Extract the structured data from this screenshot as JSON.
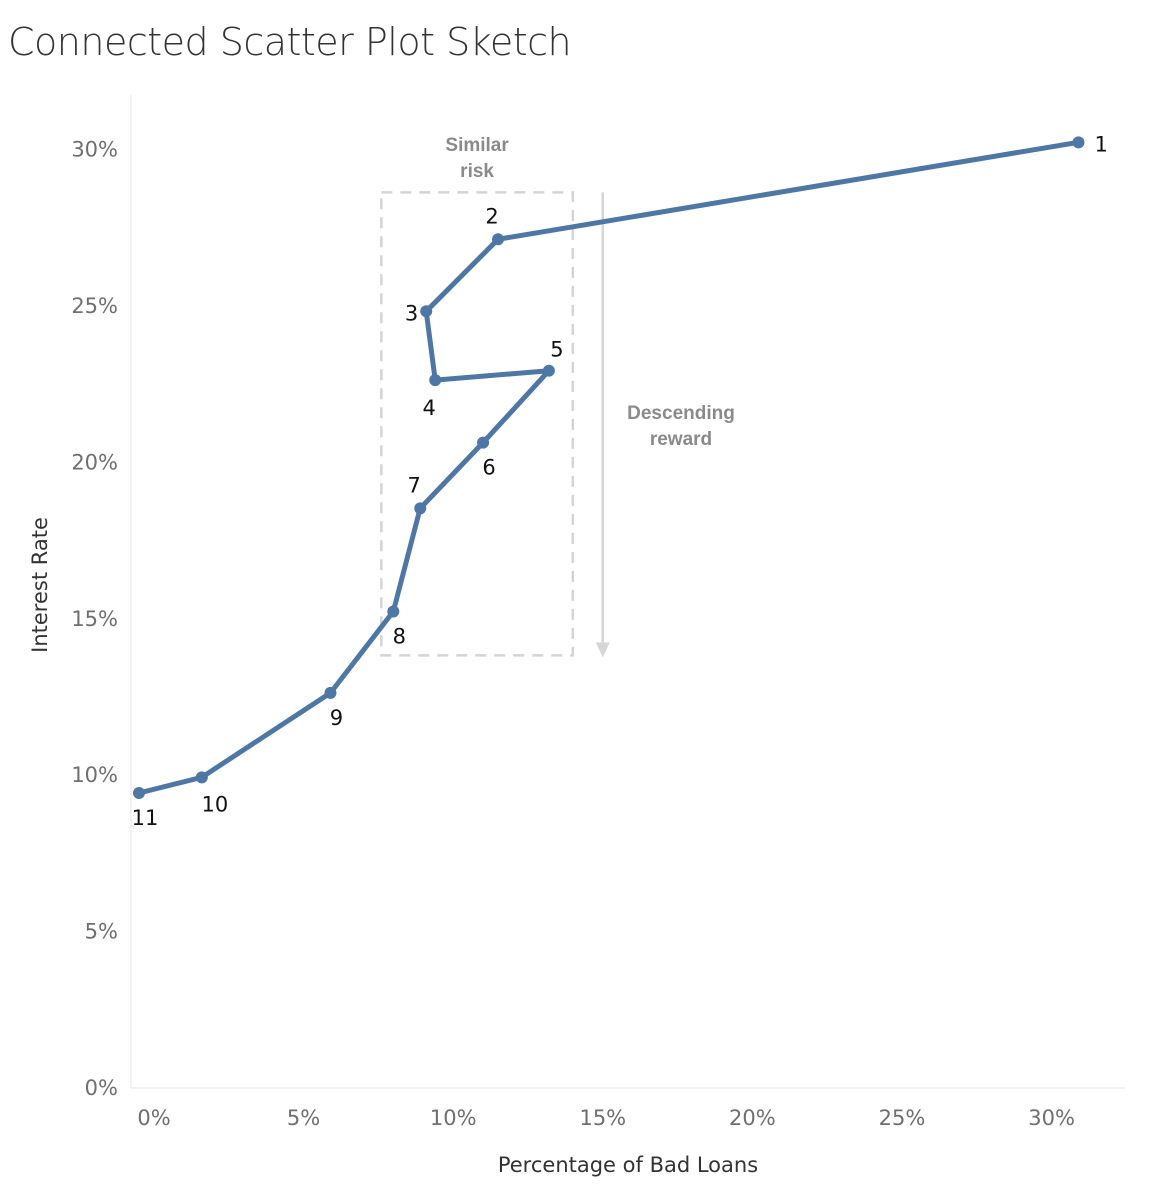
{
  "title": "Connected Scatter Plot Sketch",
  "colors": {
    "line": "#4e77a5",
    "point": "#4e77a5",
    "annotation": "#8a8a8a",
    "risk_box": "#d4d4d4",
    "reward_arrow": "#d6d6d6"
  },
  "chart_data": {
    "type": "line",
    "subtype": "connected-scatter",
    "title": "Connected Scatter Plot Sketch",
    "xlabel": "Percentage of Bad Loans",
    "ylabel": "Interest Rate",
    "xlim": [
      0,
      33
    ],
    "ylim": [
      0,
      32
    ],
    "x_ticks": [
      0,
      5,
      10,
      15,
      20,
      25,
      30
    ],
    "x_tick_labels": [
      "0%",
      "5%",
      "10%",
      "15%",
      "20%",
      "25%",
      "30%"
    ],
    "y_ticks": [
      0,
      5,
      10,
      15,
      20,
      25,
      30
    ],
    "y_tick_labels": [
      "0%",
      "5%",
      "10%",
      "15%",
      "20%",
      "25%",
      "30%"
    ],
    "grid": false,
    "points": [
      {
        "label": "1",
        "x": 31.5,
        "y": 30.2,
        "label_pos": "right"
      },
      {
        "label": "2",
        "x": 12.1,
        "y": 27.1,
        "label_pos": "above-left"
      },
      {
        "label": "3",
        "x": 9.7,
        "y": 24.8,
        "label_pos": "left"
      },
      {
        "label": "4",
        "x": 10.0,
        "y": 22.6,
        "label_pos": "below-left"
      },
      {
        "label": "5",
        "x": 13.8,
        "y": 22.9,
        "label_pos": "above"
      },
      {
        "label": "6",
        "x": 11.6,
        "y": 20.6,
        "label_pos": "below"
      },
      {
        "label": "7",
        "x": 9.5,
        "y": 18.5,
        "label_pos": "above-left"
      },
      {
        "label": "8",
        "x": 8.6,
        "y": 15.2,
        "label_pos": "below"
      },
      {
        "label": "9",
        "x": 6.5,
        "y": 12.6,
        "label_pos": "below"
      },
      {
        "label": "10",
        "x": 2.2,
        "y": 9.9,
        "label_pos": "below-right"
      },
      {
        "label": "11",
        "x": 0.1,
        "y": 9.4,
        "label_pos": "below"
      }
    ],
    "annotations": [
      {
        "type": "box",
        "label_lines": [
          "Similar",
          "risk"
        ],
        "x_range": [
          8.2,
          14.6
        ],
        "y_range": [
          13.8,
          28.6
        ]
      },
      {
        "type": "arrow",
        "label_lines": [
          "Descending",
          "reward"
        ],
        "x": 15.6,
        "y_from": 28.6,
        "y_to": 13.8
      }
    ]
  }
}
